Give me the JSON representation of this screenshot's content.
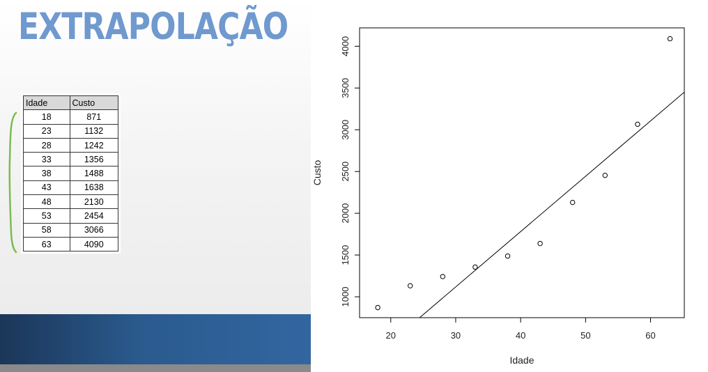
{
  "slide": {
    "title": "EXTRAPOLAÇÃO"
  },
  "table": {
    "headers": [
      "Idade",
      "Custo"
    ],
    "rows": [
      [
        "18",
        "871"
      ],
      [
        "23",
        "1132"
      ],
      [
        "28",
        "1242"
      ],
      [
        "33",
        "1356"
      ],
      [
        "38",
        "1488"
      ],
      [
        "43",
        "1638"
      ],
      [
        "48",
        "2130"
      ],
      [
        "53",
        "2454"
      ],
      [
        "58",
        "3066"
      ],
      [
        "63",
        "4090"
      ]
    ]
  },
  "colors": {
    "title": "#6f99cf",
    "band": "#2a5a8e",
    "bracket": "#7dbb52"
  },
  "chart_data": {
    "type": "scatter",
    "title": "",
    "xlabel": "Idade",
    "ylabel": "Custo",
    "x": [
      18,
      23,
      28,
      33,
      38,
      43,
      48,
      53,
      58,
      63
    ],
    "y": [
      871,
      1132,
      1242,
      1356,
      1488,
      1638,
      2130,
      2454,
      3066,
      4090
    ],
    "xlim": [
      15.2,
      65.2
    ],
    "ylim": [
      750,
      4220
    ],
    "xticks": [
      20,
      30,
      40,
      50,
      60
    ],
    "yticks": [
      1000,
      1500,
      2000,
      2500,
      3000,
      3500,
      4000
    ],
    "regression_line": {
      "intercept": -869.8,
      "slope": 66.26
    },
    "grid": false
  }
}
